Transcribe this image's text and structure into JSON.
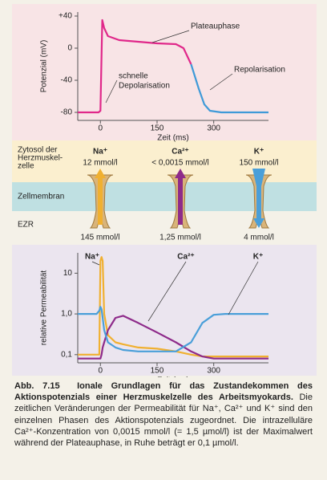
{
  "chart_data": [
    {
      "type": "line",
      "y_label": "Potenzial (mV)",
      "x_label": "Zeit (ms)",
      "annotations": [
        "Plateauphase",
        "schnelle",
        "Depolarisation",
        "Repolarisation"
      ],
      "x": [
        -60,
        -5,
        0,
        5,
        10,
        20,
        50,
        100,
        150,
        200,
        220,
        240,
        260,
        275,
        290,
        320,
        445
      ],
      "series": [
        {
          "color": "#e0288a",
          "values": [
            -80,
            -80,
            -78,
            35,
            25,
            15,
            10,
            8,
            6,
            5,
            0,
            -20,
            null,
            null,
            null,
            null,
            null
          ]
        },
        {
          "color": "#3f9ad8",
          "values": [
            null,
            null,
            null,
            null,
            null,
            null,
            null,
            null,
            null,
            null,
            null,
            -20,
            -50,
            -70,
            -78,
            -80,
            -80
          ]
        }
      ],
      "xlim": [
        -60,
        445
      ],
      "xticks": [
        0,
        150,
        300
      ],
      "ylim": [
        -90,
        45
      ],
      "yticks": [
        {
          "value": 40,
          "label": "+40"
        },
        0,
        -40,
        -80
      ]
    },
    {
      "type": "line",
      "y_label": "relative Permeabilität",
      "x_label": "Zeit (ms)",
      "log_y": true,
      "x": [
        -60,
        -10,
        -3,
        0,
        3,
        6,
        10,
        20,
        40,
        60,
        100,
        150,
        200,
        240,
        270,
        300,
        330,
        445
      ],
      "series": [
        {
          "name": "Na⁺",
          "color": "#f0b030",
          "values": [
            0.1,
            0.1,
            0.1,
            20,
            25,
            20,
            1,
            0.3,
            0.2,
            0.18,
            0.15,
            0.14,
            0.12,
            0.1,
            0.09,
            0.09,
            0.09,
            0.09
          ]
        },
        {
          "name": "Ca²⁺",
          "color": "#8e2b8a",
          "values": [
            0.08,
            0.08,
            0.08,
            0.08,
            0.1,
            0.15,
            0.2,
            0.4,
            0.8,
            0.9,
            0.6,
            0.35,
            0.2,
            0.12,
            0.09,
            0.08,
            0.08,
            0.08
          ]
        },
        {
          "name": "K⁺",
          "color": "#4a9fd9",
          "values": [
            1,
            1,
            1.2,
            1.5,
            1.3,
            0.8,
            0.4,
            0.2,
            0.15,
            0.13,
            0.12,
            0.12,
            0.12,
            0.2,
            0.6,
            0.95,
            1,
            1
          ]
        }
      ],
      "xlim": [
        -60,
        445
      ],
      "xticks": [
        0,
        150,
        300
      ],
      "ylim": [
        0.063,
        31.6
      ],
      "yticks": [
        10,
        {
          "value": 1,
          "label": "1,0"
        },
        {
          "value": 0.1,
          "label": "0,1"
        }
      ]
    }
  ],
  "diagram": {
    "cytosol_label": [
      "Zytosol der",
      "Herzmuskel-",
      "zelle"
    ],
    "membrane_label": "Zellmembran",
    "outside_label": "EZR",
    "ions": [
      {
        "name": "Na⁺",
        "inside": "12 mmol/l",
        "outside": "145 mmol/l"
      },
      {
        "name": "Ca²⁺",
        "inside": "< 0,0015 mmol/l",
        "outside": "1,25 mmol/l"
      },
      {
        "name": "K⁺",
        "inside": "150 mmol/l",
        "outside": "4 mmol/l"
      }
    ]
  },
  "caption": {
    "label": "Abb. 7.15",
    "title": "Ionale Grundlagen für das Zustandekommen des Aktionspotenzials einer Herzmuskelzelle des Arbeitsmyokards.",
    "text": "Die zeitlichen Veränderungen der Permeabilität für Na⁺, Ca²⁺ und K⁺ sind den einzelnen Phasen des Aktionspotenzials zugeordnet. Die intrazelluläre Ca²⁺-Konzentration von 0,0015 mmol/l (= 1,5 µmol/l) ist der Maximalwert während der Plateauphase, in Ruhe beträgt er 0,1 µmol/l."
  }
}
